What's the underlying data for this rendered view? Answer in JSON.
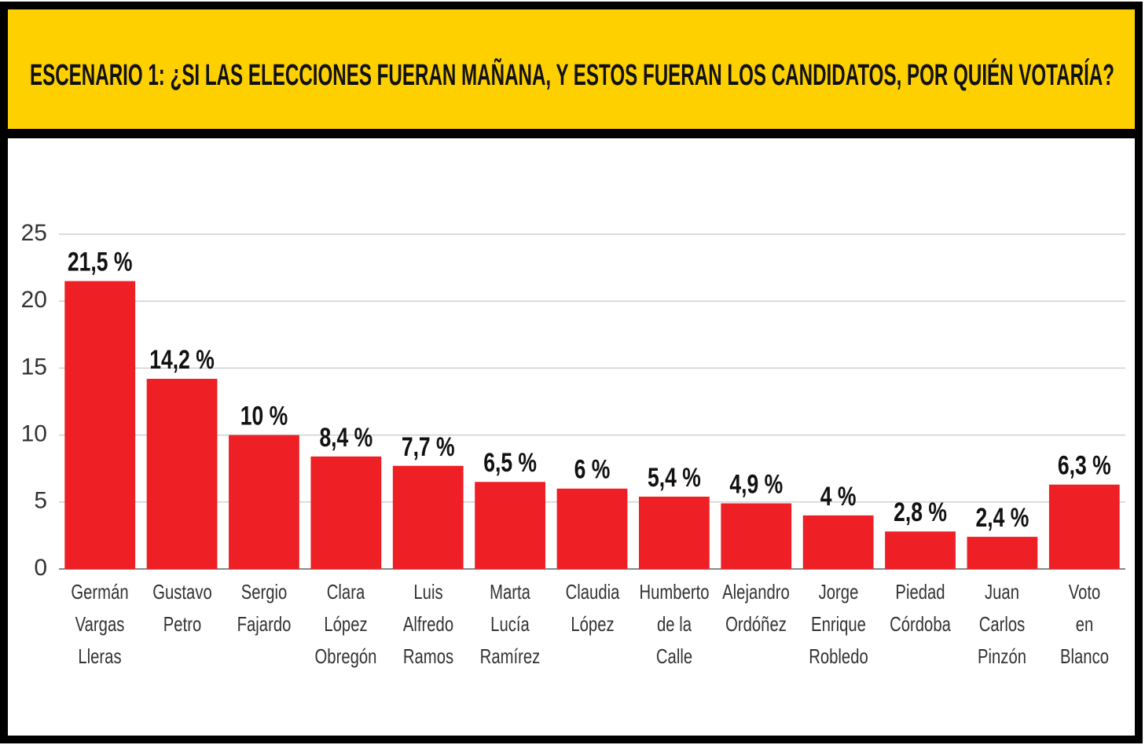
{
  "chart_data": {
    "type": "bar",
    "title": "ESCENARIO 1: ¿SI LAS ELECCIONES FUERAN MAÑANA, Y ESTOS FUERAN LOS CANDIDATOS, POR QUIÉN VOTARÍA?",
    "categories": [
      "Germán\nVargas\nLleras",
      "Gustavo\nPetro",
      "Sergio\nFajardo",
      "Clara\nLópez\nObregón",
      "Luis\nAlfredo\nRamos",
      "Marta\nLucía\nRamírez",
      "Claudia\nLópez",
      "Humberto\nde la\nCalle",
      "Alejandro\nOrdóñez",
      "Jorge\nEnrique\nRobledo",
      "Piedad\nCórdoba",
      "Juan\nCarlos\nPinzón",
      "Voto\nen\nBlanco"
    ],
    "values": [
      21.5,
      14.2,
      10,
      8.4,
      7.7,
      6.5,
      6,
      5.4,
      4.9,
      4,
      2.8,
      2.4,
      6.3
    ],
    "value_labels": [
      "21,5 %",
      "14,2 %",
      "10 %",
      "8,4 %",
      "7,7 %",
      "6,5 %",
      "6 %",
      "5,4 %",
      "4,9 %",
      "4 %",
      "2,8 %",
      "2,4 %",
      "6,3 %"
    ],
    "color": "#ee1f25",
    "ylim": [
      0,
      25
    ],
    "yticks": [
      0,
      5,
      10,
      15,
      20,
      25
    ],
    "grid": true
  }
}
